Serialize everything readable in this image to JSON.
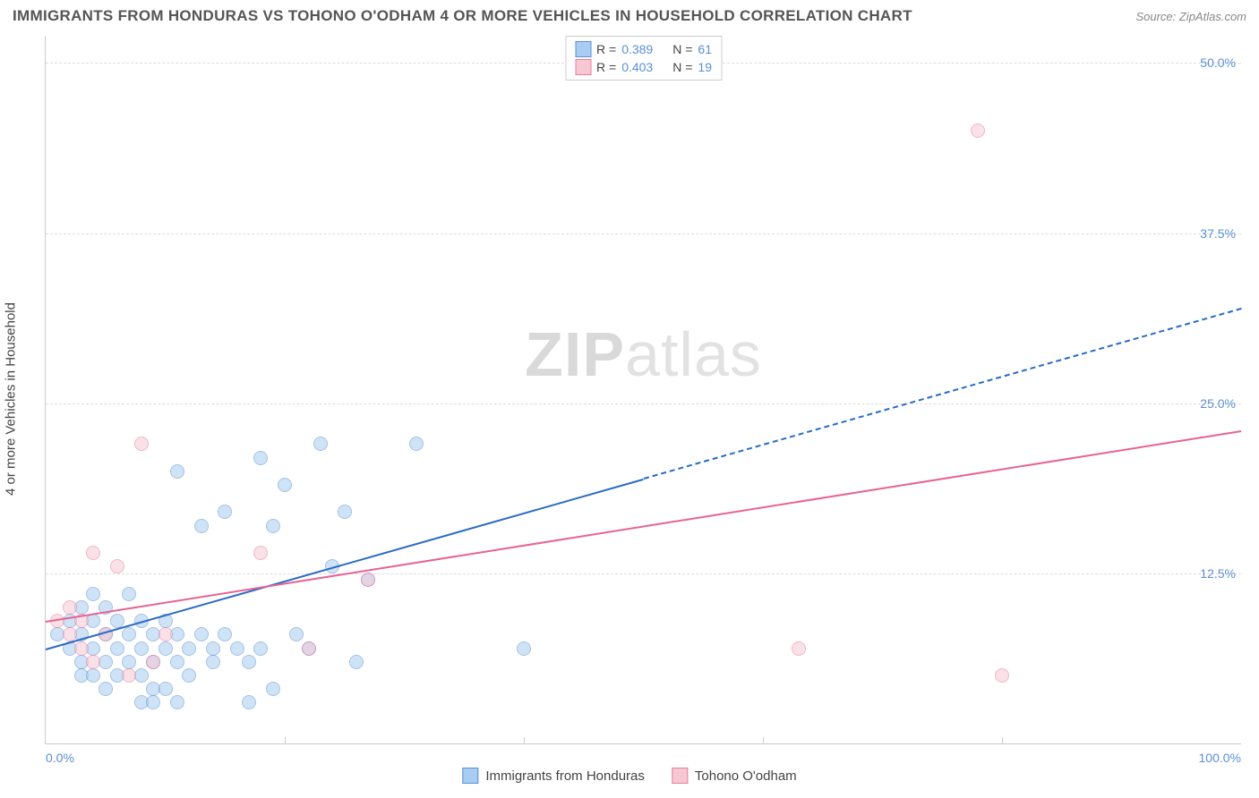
{
  "title": "IMMIGRANTS FROM HONDURAS VS TOHONO O'ODHAM 4 OR MORE VEHICLES IN HOUSEHOLD CORRELATION CHART",
  "source": "Source: ZipAtlas.com",
  "watermark_a": "ZIP",
  "watermark_b": "atlas",
  "chart": {
    "type": "scatter",
    "y_axis_label": "4 or more Vehicles in Household",
    "xlim": [
      0,
      100
    ],
    "ylim": [
      0,
      52
    ],
    "x_ticks": [
      0,
      100
    ],
    "x_tick_labels": [
      "0.0%",
      "100.0%"
    ],
    "y_ticks": [
      12.5,
      25.0,
      37.5,
      50.0
    ],
    "y_tick_labels": [
      "12.5%",
      "25.0%",
      "37.5%",
      "50.0%"
    ],
    "x_minor_ticks": [
      20,
      40,
      60,
      80
    ],
    "background_color": "#ffffff",
    "grid_color": "#dddddd",
    "axis_color": "#cccccc",
    "tick_label_color": "#5a8fd6",
    "axis_title_color": "#444444",
    "title_fontsize": 17,
    "label_fontsize": 15,
    "tick_fontsize": 14,
    "marker_radius": 8,
    "marker_opacity": 0.55,
    "series": [
      {
        "name": "Immigrants from Honduras",
        "color_fill": "#a9cdf0",
        "color_stroke": "#5a8fd6",
        "R": "0.389",
        "N": "61",
        "trend": {
          "x1": 0,
          "y1": 7.0,
          "x2": 50,
          "y2": 19.5,
          "extrapolate_x": 100,
          "extrapolate_y": 32.0,
          "color": "#2a6bc4",
          "width": 2
        },
        "points": [
          [
            1,
            8
          ],
          [
            2,
            9
          ],
          [
            2,
            7
          ],
          [
            3,
            10
          ],
          [
            3,
            8
          ],
          [
            3,
            6
          ],
          [
            4,
            9
          ],
          [
            4,
            7
          ],
          [
            4,
            11
          ],
          [
            5,
            8
          ],
          [
            5,
            6
          ],
          [
            5,
            10
          ],
          [
            6,
            7
          ],
          [
            6,
            9
          ],
          [
            6,
            5
          ],
          [
            7,
            8
          ],
          [
            7,
            6
          ],
          [
            7,
            11
          ],
          [
            8,
            7
          ],
          [
            8,
            9
          ],
          [
            8,
            5
          ],
          [
            9,
            8
          ],
          [
            9,
            6
          ],
          [
            9,
            4
          ],
          [
            10,
            7
          ],
          [
            10,
            9
          ],
          [
            11,
            6
          ],
          [
            11,
            8
          ],
          [
            11,
            20
          ],
          [
            12,
            7
          ],
          [
            12,
            5
          ],
          [
            13,
            8
          ],
          [
            13,
            16
          ],
          [
            14,
            7
          ],
          [
            14,
            6
          ],
          [
            15,
            8
          ],
          [
            15,
            17
          ],
          [
            16,
            7
          ],
          [
            17,
            6
          ],
          [
            17,
            3
          ],
          [
            18,
            21
          ],
          [
            18,
            7
          ],
          [
            19,
            16
          ],
          [
            20,
            19
          ],
          [
            21,
            8
          ],
          [
            22,
            7
          ],
          [
            23,
            22
          ],
          [
            24,
            13
          ],
          [
            25,
            17
          ],
          [
            26,
            6
          ],
          [
            27,
            12
          ],
          [
            31,
            22
          ],
          [
            8,
            3
          ],
          [
            9,
            3
          ],
          [
            10,
            4
          ],
          [
            11,
            3
          ],
          [
            19,
            4
          ],
          [
            40,
            7
          ],
          [
            3,
            5
          ],
          [
            4,
            5
          ],
          [
            5,
            4
          ]
        ]
      },
      {
        "name": "Tohono O'odham",
        "color_fill": "#f6c8d4",
        "color_stroke": "#e87ba0",
        "R": "0.403",
        "N": "19",
        "trend": {
          "x1": 0,
          "y1": 9.0,
          "x2": 100,
          "y2": 23.0,
          "color": "#e76394",
          "width": 2
        },
        "points": [
          [
            1,
            9
          ],
          [
            2,
            10
          ],
          [
            2,
            8
          ],
          [
            3,
            9
          ],
          [
            3,
            7
          ],
          [
            4,
            14
          ],
          [
            4,
            6
          ],
          [
            5,
            8
          ],
          [
            6,
            13
          ],
          [
            7,
            5
          ],
          [
            8,
            22
          ],
          [
            9,
            6
          ],
          [
            10,
            8
          ],
          [
            18,
            14
          ],
          [
            22,
            7
          ],
          [
            27,
            12
          ],
          [
            63,
            7
          ],
          [
            78,
            45
          ],
          [
            80,
            5
          ]
        ]
      }
    ]
  },
  "legend_top": {
    "r_label": "R =",
    "n_label": "N ="
  }
}
